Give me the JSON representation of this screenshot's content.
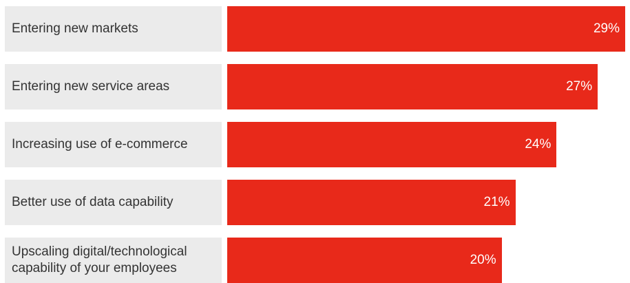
{
  "chart_data": {
    "type": "bar",
    "orientation": "horizontal",
    "categories": [
      "Entering new markets",
      "Entering new service areas",
      "Increasing use of e-commerce",
      "Better use of data capability",
      "Upscaling digital/technological\ncapability of your employees"
    ],
    "values": [
      29,
      27,
      24,
      21,
      20
    ],
    "value_labels": [
      "29%",
      "27%",
      "24%",
      "21%",
      "20%"
    ],
    "unit": "%",
    "title": "",
    "xlabel": "",
    "ylabel": "",
    "xlim": [
      0,
      29
    ],
    "grid": false,
    "legend": "none",
    "colors": {
      "bar": "#e8291a",
      "label_background": "#ebebeb",
      "label_text": "#333333",
      "value_text": "#ffffff"
    }
  }
}
